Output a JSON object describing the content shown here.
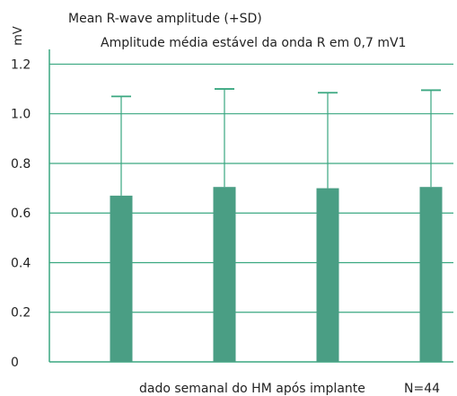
{
  "chart_data": {
    "type": "bar",
    "title": "Mean R-wave amplitude (+SD)",
    "subtitle": "Amplitude média estável da onda R em 0,7 mV1",
    "ylabel": "mV",
    "xlabel": "dado semanal do HM após implante",
    "note": "N=44",
    "categories": [
      "",
      "",
      "",
      ""
    ],
    "values": [
      0.67,
      0.705,
      0.7,
      0.705
    ],
    "errors": [
      0.4,
      0.395,
      0.385,
      0.39
    ],
    "ylim": [
      0,
      1.35
    ],
    "yticks": [
      0,
      0.2,
      0.4,
      0.6,
      0.8,
      1.0,
      1.2
    ],
    "ytick_labels": [
      "0",
      "0.2",
      "0.4",
      "0.6",
      "0.8",
      "1.0",
      "1.2"
    ],
    "grid": true,
    "colors": {
      "bar": "#4a9e84",
      "grid": "#3aa780",
      "text": "#222222"
    }
  }
}
